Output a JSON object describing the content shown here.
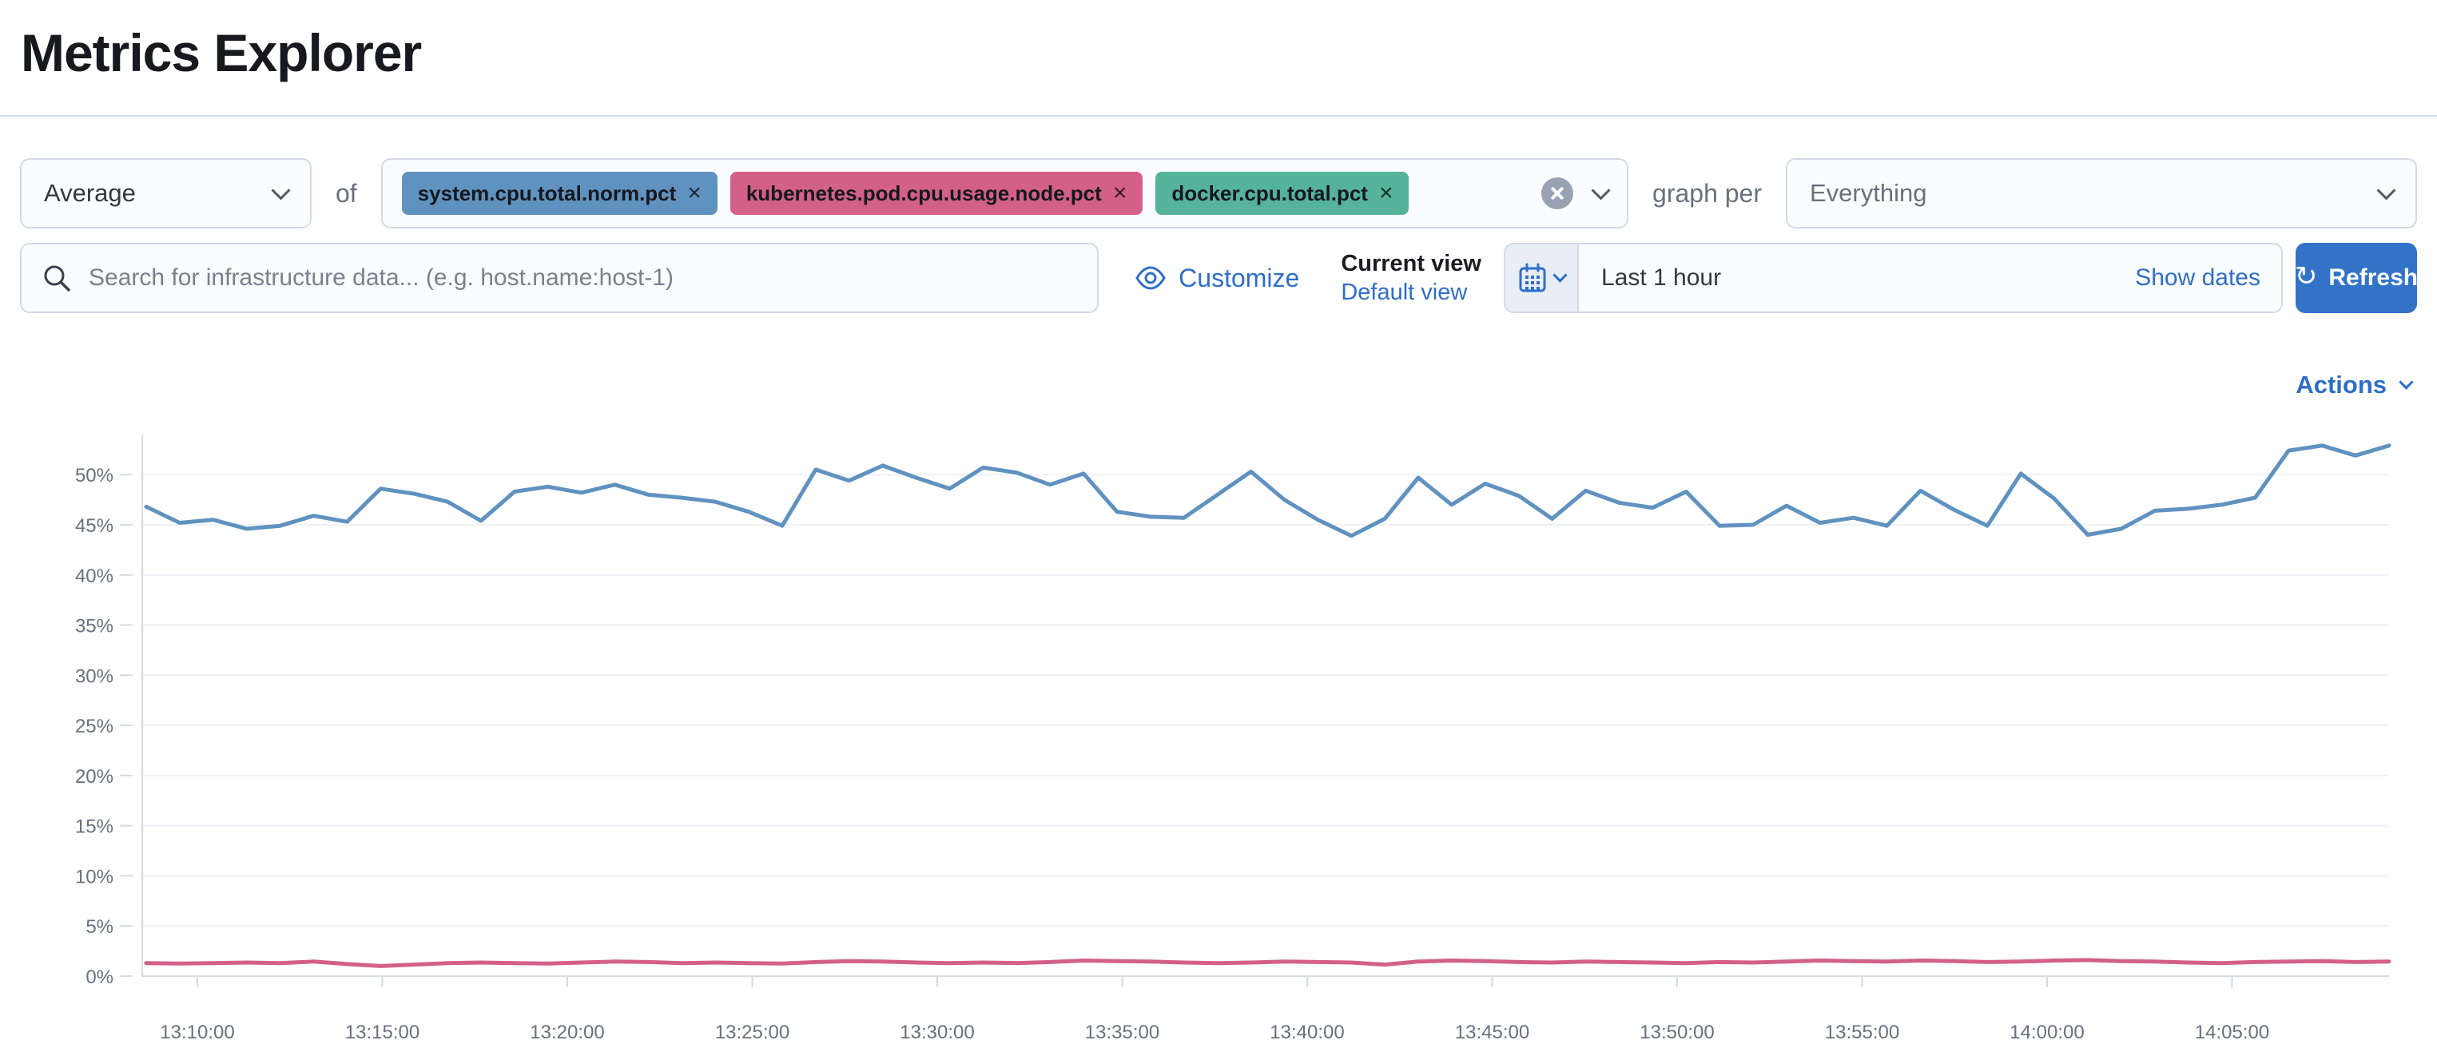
{
  "page": {
    "title": "Metrics Explorer"
  },
  "colors": {
    "primary_button": "#3273c8",
    "link_blue": "#2f6ec7",
    "border": "#d3dae6",
    "muted_text": "#69707d",
    "series_blue": "#6092c0",
    "series_pink": "#d36086",
    "badge_green": "#54b399"
  },
  "toolbar": {
    "aggregation_value": "Average",
    "of_label": "of",
    "metrics": [
      {
        "label": "system.cpu.total.norm.pct",
        "color": "#6092c0"
      },
      {
        "label": "kubernetes.pod.cpu.usage.node.pct",
        "color": "#d36086"
      },
      {
        "label": "docker.cpu.total.pct",
        "color": "#54b399"
      }
    ],
    "graph_per_label": "graph per",
    "graph_per_value": "Everything"
  },
  "searchbar": {
    "placeholder": "Search for infrastructure data... (e.g. host.name:host-1)",
    "value": ""
  },
  "view_controls": {
    "customize_label": "Customize",
    "current_view_label": "Current view",
    "view_name": "Default view"
  },
  "timepicker": {
    "range_label": "Last 1 hour",
    "show_dates_label": "Show dates",
    "refresh_label": "Refresh"
  },
  "actions_label": "Actions",
  "chart_data": {
    "type": "line",
    "title": "",
    "xlabel": "",
    "ylabel": "",
    "ylim": [
      0,
      54
    ],
    "grid": true,
    "legend": "none",
    "y_tick_values": [
      0,
      5,
      10,
      15,
      20,
      25,
      30,
      35,
      40,
      45,
      50
    ],
    "y_tick_suffix": "%",
    "x_tick_labels": [
      "13:10:00",
      "13:15:00",
      "13:20:00",
      "13:25:00",
      "13:30:00",
      "13:35:00",
      "13:40:00",
      "13:45:00",
      "13:50:00",
      "13:55:00",
      "14:00:00",
      "14:05:00"
    ],
    "series": [
      {
        "name": "system.cpu.total.norm.pct (avg)",
        "color": "#6092c0",
        "unit": "%",
        "values": [
          46.8,
          45.2,
          45.5,
          44.6,
          44.9,
          45.9,
          45.3,
          48.6,
          48.1,
          47.3,
          45.4,
          48.3,
          48.8,
          48.2,
          49.0,
          48.0,
          47.7,
          47.3,
          46.3,
          44.9,
          50.5,
          49.4,
          50.9,
          49.7,
          48.6,
          50.7,
          50.2,
          49.0,
          50.1,
          46.3,
          45.8,
          45.7,
          48.0,
          50.3,
          47.5,
          45.5,
          43.9,
          45.6,
          49.7,
          47.0,
          49.1,
          47.9,
          45.6,
          48.4,
          47.2,
          46.7,
          48.3,
          44.9,
          45.0,
          46.9,
          45.2,
          45.7,
          44.9,
          48.4,
          46.5,
          44.9,
          50.1,
          47.6,
          44.0,
          44.6,
          46.4,
          46.6,
          47.0,
          47.7,
          52.4,
          52.9,
          51.9,
          52.9
        ]
      },
      {
        "name": "kubernetes.pod.cpu.usage.node.pct (avg)",
        "color": "#d36086",
        "unit": "%",
        "values": [
          1.3,
          1.25,
          1.3,
          1.35,
          1.3,
          1.45,
          1.2,
          1.0,
          1.15,
          1.3,
          1.35,
          1.3,
          1.25,
          1.35,
          1.45,
          1.4,
          1.3,
          1.35,
          1.3,
          1.25,
          1.4,
          1.5,
          1.45,
          1.35,
          1.3,
          1.35,
          1.3,
          1.4,
          1.55,
          1.5,
          1.45,
          1.35,
          1.3,
          1.35,
          1.45,
          1.4,
          1.35,
          1.15,
          1.45,
          1.55,
          1.5,
          1.4,
          1.35,
          1.45,
          1.4,
          1.35,
          1.3,
          1.4,
          1.35,
          1.45,
          1.55,
          1.5,
          1.45,
          1.55,
          1.5,
          1.4,
          1.45,
          1.55,
          1.6,
          1.5,
          1.45,
          1.35,
          1.3,
          1.4,
          1.45,
          1.5,
          1.4,
          1.45
        ]
      }
    ]
  }
}
